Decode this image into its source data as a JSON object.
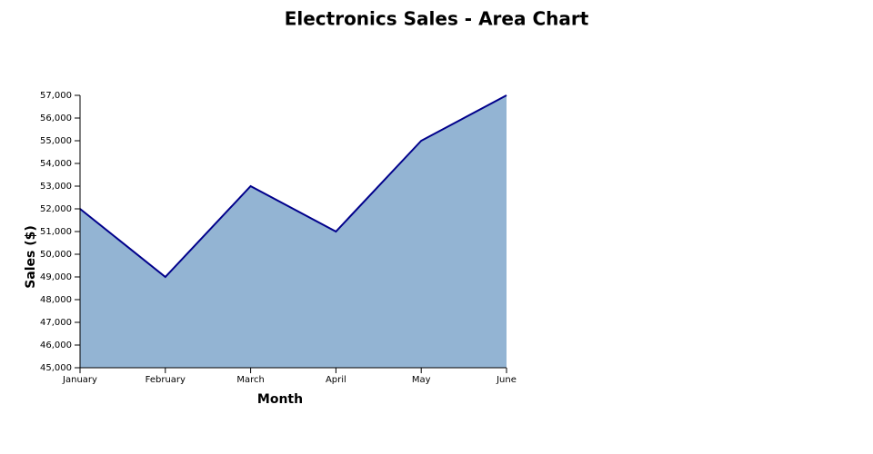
{
  "chart_data": {
    "type": "area",
    "title": "Electronics Sales - Area Chart",
    "x_label": "Month",
    "y_label": "Sales ($)",
    "categories": [
      "January",
      "February",
      "March",
      "April",
      "May",
      "June"
    ],
    "values": [
      52000,
      49000,
      53000,
      51000,
      55000,
      57000
    ],
    "color": "#93b4d3",
    "line_color": "#00008b",
    "ylim": [
      45000,
      57000
    ],
    "yticks": [
      {
        "value": 45000,
        "label": "45,000"
      },
      {
        "value": 46000,
        "label": "46,000"
      },
      {
        "value": 47000,
        "label": "47,000"
      },
      {
        "value": 48000,
        "label": "48,000"
      },
      {
        "value": 49000,
        "label": "49,000"
      },
      {
        "value": 50000,
        "label": "50,000"
      },
      {
        "value": 51000,
        "label": "51,000"
      },
      {
        "value": 52000,
        "label": "52,000"
      },
      {
        "value": 53000,
        "label": "53,000"
      },
      {
        "value": 54000,
        "label": "54,000"
      },
      {
        "value": 55000,
        "label": "55,000"
      },
      {
        "value": 56000,
        "label": "56,000"
      },
      {
        "value": 57000,
        "label": "57,000"
      }
    ],
    "grid": false
  }
}
